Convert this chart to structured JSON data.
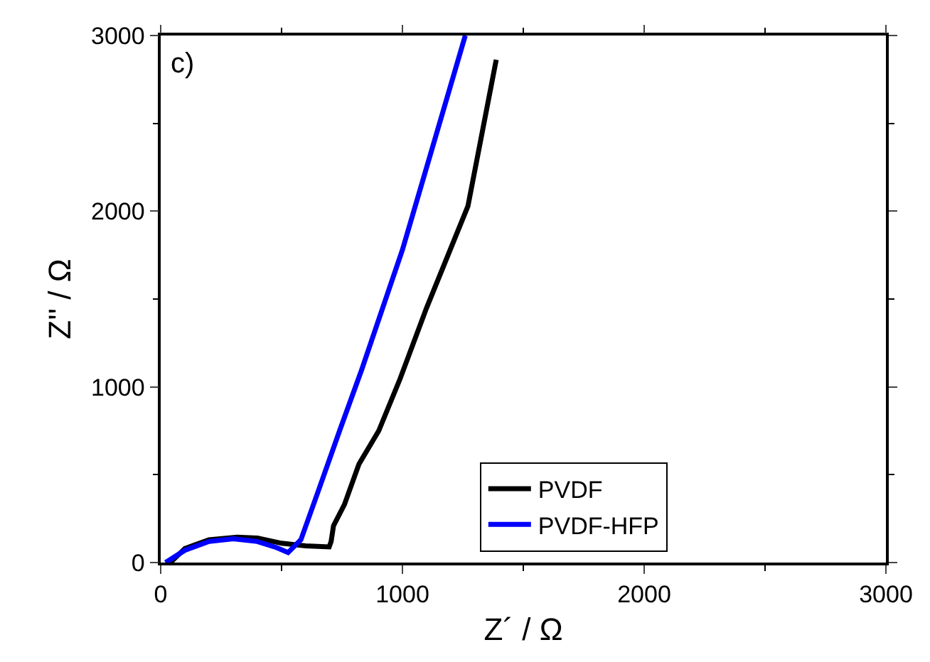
{
  "chart_data": {
    "type": "line",
    "xlabel": "Z´ / Ω",
    "ylabel": "Z'' / Ω",
    "annotations": [
      "c)"
    ],
    "xlim": [
      0,
      3000
    ],
    "xticks": [
      0,
      1000,
      2000,
      3000
    ],
    "ylim": [
      0,
      3000
    ],
    "yticks": [
      0,
      1000,
      2000,
      3000
    ],
    "legend": "bottom right",
    "line_style": "solid",
    "marker": "none",
    "series": [
      {
        "name": "PVDF",
        "color": "#000000",
        "x": [
          40,
          100,
          200,
          316,
          400,
          500,
          600,
          697,
          705,
          715,
          760,
          820,
          902,
          990,
          1100,
          1271,
          1388
        ],
        "values": [
          0,
          80,
          130,
          145,
          140,
          110,
          95,
          89,
          120,
          210,
          330,
          560,
          750,
          1045,
          1450,
          2029,
          2862
        ]
      },
      {
        "name": "PVDF-HFP",
        "color": "#0000ff",
        "x": [
          20,
          100,
          200,
          300,
          400,
          480,
          527,
          580,
          650,
          740,
          832,
          1000,
          1260
        ],
        "values": [
          0,
          70,
          120,
          135,
          120,
          85,
          57,
          130,
          400,
          750,
          1100,
          1780,
          3000
        ]
      }
    ]
  }
}
